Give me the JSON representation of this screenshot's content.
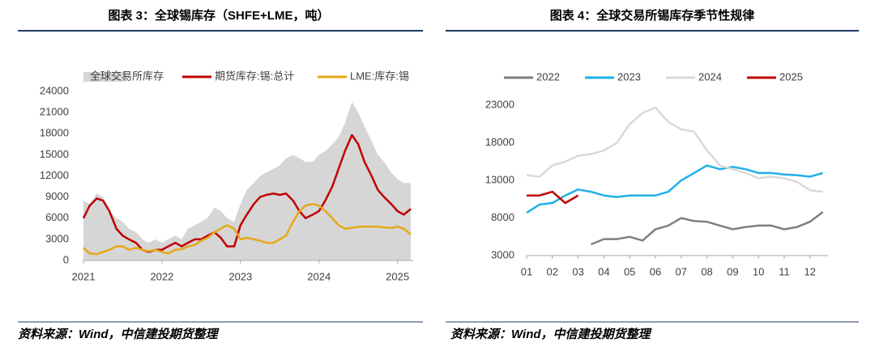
{
  "chart_data": [
    {
      "type": "line",
      "title": "图表 3：全球锡库存（SHFE+LME，吨）",
      "source": "资料来源：Wind，中信建投期货整理",
      "x": [
        2021.0,
        2021.08,
        2021.17,
        2021.25,
        2021.33,
        2021.42,
        2021.5,
        2021.58,
        2021.67,
        2021.75,
        2021.83,
        2021.92,
        2022.0,
        2022.08,
        2022.17,
        2022.25,
        2022.33,
        2022.42,
        2022.5,
        2022.58,
        2022.67,
        2022.75,
        2022.83,
        2022.92,
        2023.0,
        2023.08,
        2023.17,
        2023.25,
        2023.33,
        2023.42,
        2023.5,
        2023.58,
        2023.67,
        2023.75,
        2023.83,
        2023.92,
        2024.0,
        2024.08,
        2024.17,
        2024.25,
        2024.33,
        2024.42,
        2024.5,
        2024.58,
        2024.67,
        2024.75,
        2024.83,
        2024.92,
        2025.0,
        2025.08,
        2025.17
      ],
      "xlim": [
        2021,
        2025.2
      ],
      "xticks": [
        2021,
        2022,
        2023,
        2024,
        2025
      ],
      "ylim": [
        0,
        24000
      ],
      "yticks": [
        0,
        3000,
        6000,
        9000,
        12000,
        15000,
        18000,
        21000,
        24000
      ],
      "series": [
        {
          "name": "全球交易所库存",
          "color": "#d6d6d6",
          "style": "area",
          "values": [
            8500,
            8000,
            9500,
            9000,
            7000,
            6000,
            5500,
            4500,
            4000,
            3000,
            2500,
            3000,
            2500,
            3000,
            3500,
            3000,
            4500,
            5000,
            5500,
            6000,
            7500,
            7000,
            6000,
            5500,
            8000,
            10000,
            11000,
            12000,
            12500,
            13000,
            13500,
            14500,
            15000,
            14500,
            14000,
            14000,
            15000,
            15500,
            16500,
            17500,
            19500,
            22500,
            21000,
            19000,
            17000,
            15000,
            14000,
            12500,
            11500,
            11000,
            11000
          ]
        },
        {
          "name": "期货库存:锡:总计",
          "color": "#c00000",
          "style": "line",
          "values": [
            6000,
            7800,
            8800,
            8500,
            7000,
            4500,
            3500,
            3000,
            2500,
            1500,
            1200,
            1500,
            1500,
            2000,
            2500,
            2000,
            2500,
            3000,
            3000,
            3500,
            4000,
            3200,
            2000,
            2000,
            5000,
            6500,
            8000,
            9000,
            9300,
            9500,
            9300,
            9500,
            8500,
            7000,
            6000,
            6500,
            7000,
            8500,
            10500,
            13000,
            15500,
            17800,
            16500,
            14000,
            12000,
            10000,
            9000,
            8000,
            7000,
            6500,
            7300
          ]
        },
        {
          "name": "LME:库存:锡",
          "color": "#e6a817",
          "style": "line",
          "values": [
            1800,
            1000,
            900,
            1200,
            1500,
            2000,
            2000,
            1500,
            1800,
            1500,
            1300,
            1500,
            1200,
            1000,
            1500,
            1600,
            2000,
            2200,
            2800,
            3200,
            4000,
            4500,
            5000,
            4500,
            3000,
            3200,
            3000,
            2800,
            2500,
            2500,
            3000,
            3500,
            5500,
            7000,
            7800,
            8000,
            7800,
            7000,
            6000,
            5000,
            4500,
            4600,
            4800,
            4800,
            4800,
            4800,
            4700,
            4600,
            4800,
            4500,
            3700
          ]
        }
      ]
    },
    {
      "type": "line",
      "title": "图表 4：全球交易所锡库存季节性规律",
      "source": "资料来源：Wind，中信建投期货整理",
      "x": [
        1,
        1.5,
        2,
        2.5,
        3,
        3.5,
        4,
        4.5,
        5,
        5.5,
        6,
        6.5,
        7,
        7.5,
        8,
        8.5,
        9,
        9.5,
        10,
        10.5,
        11,
        11.5,
        12,
        12.5
      ],
      "xlim": [
        1,
        12.7
      ],
      "xticks": [
        {
          "value": 1,
          "label": "01"
        },
        {
          "value": 2,
          "label": "02"
        },
        {
          "value": 3,
          "label": "03"
        },
        {
          "value": 4,
          "label": "04"
        },
        {
          "value": 5,
          "label": "05"
        },
        {
          "value": 6,
          "label": "06"
        },
        {
          "value": 7,
          "label": "07"
        },
        {
          "value": 8,
          "label": "08"
        },
        {
          "value": 9,
          "label": "09"
        },
        {
          "value": 10,
          "label": "10"
        },
        {
          "value": 11,
          "label": "11"
        },
        {
          "value": 12,
          "label": "12"
        }
      ],
      "ylim": [
        3000,
        24000
      ],
      "yticks": [
        3000,
        8000,
        13000,
        18000,
        23000
      ],
      "series": [
        {
          "name": "2022",
          "color": "#7f7f7f",
          "style": "line",
          "values": [
            null,
            null,
            null,
            null,
            null,
            4500,
            5200,
            5200,
            5500,
            5000,
            6500,
            7000,
            8000,
            7600,
            7500,
            7000,
            6500,
            6800,
            7000,
            7000,
            6500,
            6800,
            7500,
            8800
          ]
        },
        {
          "name": "2023",
          "color": "#1fb0e8",
          "style": "line",
          "values": [
            8700,
            9800,
            10000,
            11000,
            11800,
            11500,
            11000,
            10800,
            11000,
            11000,
            11000,
            11500,
            13000,
            14000,
            15000,
            14500,
            14800,
            14500,
            14000,
            14000,
            13800,
            13700,
            13500,
            14000
          ]
        },
        {
          "name": "2024",
          "color": "#d9d9d9",
          "style": "line",
          "values": [
            13700,
            13500,
            15000,
            15500,
            16300,
            16500,
            17000,
            18000,
            20500,
            22000,
            22700,
            20800,
            19800,
            19500,
            17000,
            15000,
            14500,
            14000,
            13300,
            13500,
            13300,
            12800,
            11700,
            11500
          ]
        },
        {
          "name": "2025",
          "color": "#c00000",
          "style": "line",
          "values": [
            11000,
            11000,
            11500,
            10000,
            11000,
            null,
            null,
            null,
            null,
            null,
            null,
            null,
            null,
            null,
            null,
            null,
            null,
            null,
            null,
            null,
            null,
            null,
            null,
            null
          ]
        }
      ]
    }
  ]
}
